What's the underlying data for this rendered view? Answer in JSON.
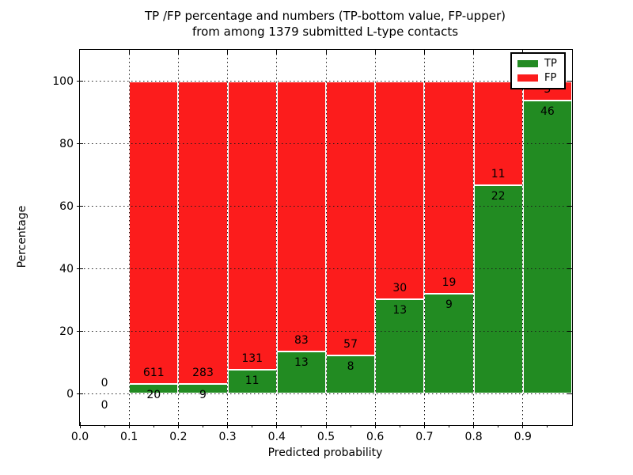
{
  "chart_data": {
    "type": "bar",
    "subtype": "stacked-percentage-histogram",
    "title_line1": "TP /FP percentage and numbers (TP-bottom value, FP-upper)",
    "title_line2": "from among 1379 submitted L-type contacts",
    "total_contacts": 1379,
    "xlabel": "Predicted probability",
    "ylabel": "Percentage",
    "xlim": [
      0.0,
      1.0
    ],
    "ylim": [
      -10,
      110
    ],
    "xticks": [
      "0.0",
      "0.1",
      "0.2",
      "0.3",
      "0.4",
      "0.5",
      "0.6",
      "0.7",
      "0.8",
      "0.9"
    ],
    "yticks": [
      0,
      20,
      40,
      60,
      80,
      100
    ],
    "grid": true,
    "grid_style": "dotted",
    "tp_color": "#228b22",
    "fp_color": "#fc1c1c",
    "legend": {
      "position": "upper right",
      "entries": [
        {
          "label": "TP",
          "color": "#228b22"
        },
        {
          "label": "FP",
          "color": "#fc1c1c"
        }
      ]
    },
    "bins": [
      {
        "x0": 0.0,
        "x1": 0.1,
        "tp": 0,
        "fp": 0,
        "tp_pct": 0.0
      },
      {
        "x0": 0.1,
        "x1": 0.2,
        "tp": 20,
        "fp": 611,
        "tp_pct": 3.2
      },
      {
        "x0": 0.2,
        "x1": 0.3,
        "tp": 9,
        "fp": 283,
        "tp_pct": 3.1
      },
      {
        "x0": 0.3,
        "x1": 0.4,
        "tp": 11,
        "fp": 131,
        "tp_pct": 7.7
      },
      {
        "x0": 0.4,
        "x1": 0.5,
        "tp": 13,
        "fp": 83,
        "tp_pct": 13.5
      },
      {
        "x0": 0.5,
        "x1": 0.6,
        "tp": 8,
        "fp": 57,
        "tp_pct": 12.3
      },
      {
        "x0": 0.6,
        "x1": 0.7,
        "tp": 13,
        "fp": 30,
        "tp_pct": 30.2
      },
      {
        "x0": 0.7,
        "x1": 0.8,
        "tp": 9,
        "fp": 19,
        "tp_pct": 32.1
      },
      {
        "x0": 0.8,
        "x1": 0.9,
        "tp": 22,
        "fp": 11,
        "tp_pct": 66.7
      },
      {
        "x0": 0.9,
        "x1": 1.0,
        "tp": 46,
        "fp": 3,
        "tp_pct": 93.9
      }
    ]
  }
}
